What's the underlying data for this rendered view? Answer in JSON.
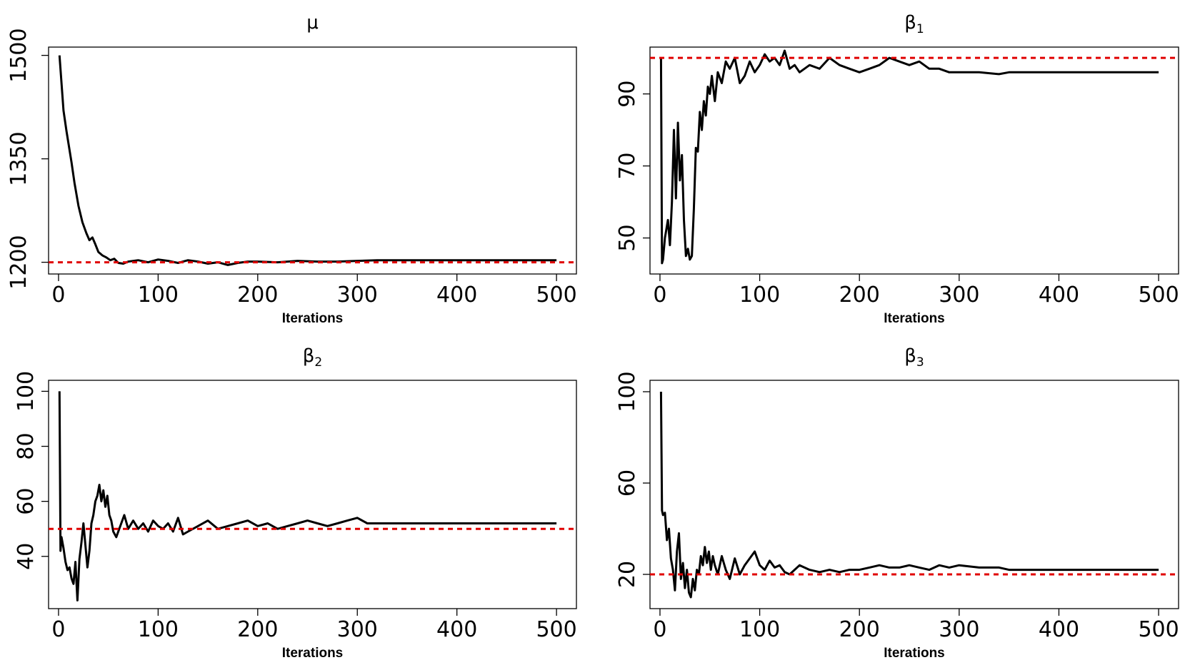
{
  "colors": {
    "trace": "#000000",
    "reference": "#e00000",
    "frame": "#000000"
  },
  "chart_data": [
    {
      "type": "line",
      "title_main": "μ",
      "title_sub": "",
      "xlabel": "Iterations",
      "ylabel": "",
      "xlim": [
        -10,
        520
      ],
      "ylim": [
        1183,
        1512
      ],
      "xticks": [
        "0",
        "100",
        "200",
        "300",
        "400",
        "500"
      ],
      "yticks": [
        "1200",
        "1350",
        "1500"
      ],
      "reference_line": 1200,
      "grid": false,
      "series": [
        {
          "x": [
            1,
            3,
            5,
            8,
            10,
            13,
            16,
            20,
            24,
            28,
            31,
            34,
            37,
            40,
            44,
            48,
            52,
            56,
            60,
            65,
            70,
            80,
            90,
            100,
            110,
            120,
            130,
            140,
            150,
            160,
            170,
            180,
            190,
            200,
            220,
            240,
            260,
            280,
            300,
            320,
            340,
            360,
            400,
            450,
            500
          ],
          "values": [
            1500,
            1460,
            1420,
            1390,
            1372,
            1345,
            1315,
            1282,
            1258,
            1242,
            1232,
            1236,
            1226,
            1215,
            1210,
            1207,
            1203,
            1205,
            1199,
            1198,
            1201,
            1203,
            1200,
            1204,
            1202,
            1199,
            1203,
            1201,
            1198,
            1200,
            1196,
            1199,
            1201,
            1201,
            1200,
            1202,
            1201,
            1201,
            1202,
            1203,
            1203,
            1203,
            1203,
            1203,
            1203
          ]
        }
      ]
    },
    {
      "type": "line",
      "title_main": "β",
      "title_sub": "1",
      "xlabel": "Iterations",
      "ylabel": "",
      "xlim": [
        -10,
        520
      ],
      "ylim": [
        40,
        103
      ],
      "xticks": [
        "0",
        "100",
        "200",
        "300",
        "400",
        "500"
      ],
      "yticks": [
        "50",
        "70",
        "90"
      ],
      "reference_line": 100,
      "grid": false,
      "series": [
        {
          "x": [
            1,
            2,
            3,
            5,
            8,
            10,
            12,
            14,
            16,
            18,
            20,
            22,
            24,
            26,
            28,
            30,
            32,
            34,
            36,
            38,
            40,
            42,
            44,
            46,
            48,
            50,
            52,
            55,
            58,
            62,
            66,
            70,
            75,
            80,
            85,
            90,
            95,
            100,
            105,
            110,
            115,
            120,
            125,
            130,
            135,
            140,
            150,
            160,
            170,
            180,
            190,
            200,
            210,
            220,
            230,
            240,
            250,
            260,
            270,
            280,
            290,
            300,
            320,
            340,
            350,
            400,
            450,
            500
          ],
          "values": [
            100,
            43,
            44,
            50,
            55,
            48,
            60,
            80,
            61,
            82,
            66,
            73,
            55,
            45,
            47,
            44,
            45,
            58,
            75,
            74,
            85,
            80,
            88,
            84,
            92,
            90,
            95,
            88,
            96,
            93,
            99,
            97,
            100,
            93,
            95,
            99,
            96,
            98,
            101,
            99,
            100,
            98,
            102,
            97,
            98,
            96,
            98,
            97,
            100,
            98,
            97,
            96,
            97,
            98,
            100,
            99,
            98,
            99,
            97,
            97,
            96,
            96,
            96,
            95.5,
            96,
            96,
            96,
            96
          ]
        }
      ]
    },
    {
      "type": "line",
      "title_main": "β",
      "title_sub": "2",
      "xlabel": "Iterations",
      "ylabel": "",
      "xlim": [
        -10,
        520
      ],
      "ylim": [
        21,
        104
      ],
      "xticks": [
        "0",
        "100",
        "200",
        "300",
        "400",
        "500"
      ],
      "yticks": [
        "40",
        "60",
        "80",
        "100"
      ],
      "reference_line": 50,
      "grid": false,
      "series": [
        {
          "x": [
            1,
            2,
            3,
            5,
            7,
            9,
            11,
            13,
            15,
            17,
            19,
            21,
            23,
            25,
            27,
            29,
            31,
            33,
            35,
            37,
            39,
            41,
            43,
            45,
            47,
            49,
            51,
            53,
            55,
            58,
            62,
            66,
            70,
            75,
            80,
            85,
            90,
            95,
            100,
            105,
            110,
            115,
            120,
            125,
            130,
            140,
            150,
            160,
            170,
            180,
            190,
            200,
            210,
            220,
            230,
            240,
            250,
            260,
            270,
            280,
            290,
            300,
            310,
            320,
            340,
            350,
            400,
            450,
            500
          ],
          "values": [
            100,
            42,
            47,
            43,
            38,
            35,
            36,
            32,
            30,
            38,
            24,
            39,
            45,
            52,
            44,
            36,
            42,
            52,
            55,
            60,
            62,
            66,
            60,
            64,
            58,
            62,
            55,
            53,
            49,
            47,
            51,
            55,
            50,
            53,
            50,
            52,
            49,
            53,
            51,
            50,
            52,
            49,
            54,
            48,
            49,
            51,
            53,
            50,
            51,
            52,
            53,
            51,
            52,
            50,
            51,
            52,
            53,
            52,
            51,
            52,
            53,
            54,
            52,
            52,
            52,
            52,
            52,
            52,
            52
          ]
        }
      ]
    },
    {
      "type": "line",
      "title_main": "β",
      "title_sub": "3",
      "xlabel": "Iterations",
      "ylabel": "",
      "xlim": [
        -10,
        520
      ],
      "ylim": [
        5,
        105
      ],
      "xticks": [
        "0",
        "100",
        "200",
        "300",
        "400",
        "500"
      ],
      "yticks": [
        "20",
        "60",
        "100"
      ],
      "reference_line": 20,
      "grid": false,
      "series": [
        {
          "x": [
            1,
            2,
            3,
            5,
            7,
            9,
            11,
            13,
            15,
            17,
            19,
            21,
            23,
            25,
            27,
            29,
            31,
            33,
            35,
            37,
            39,
            41,
            43,
            45,
            47,
            49,
            51,
            53,
            55,
            58,
            62,
            66,
            70,
            75,
            80,
            85,
            90,
            95,
            100,
            105,
            110,
            115,
            120,
            125,
            130,
            140,
            150,
            160,
            170,
            180,
            190,
            200,
            210,
            220,
            230,
            240,
            250,
            260,
            270,
            280,
            290,
            300,
            320,
            340,
            350,
            400,
            450,
            500
          ],
          "values": [
            100,
            48,
            46,
            47,
            35,
            40,
            27,
            22,
            13,
            30,
            38,
            18,
            25,
            14,
            22,
            12,
            10,
            18,
            13,
            22,
            20,
            28,
            24,
            32,
            25,
            30,
            22,
            28,
            24,
            20,
            28,
            22,
            18,
            27,
            20,
            24,
            27,
            30,
            24,
            22,
            26,
            23,
            24,
            21,
            20,
            24,
            22,
            21,
            22,
            21,
            22,
            22,
            23,
            24,
            23,
            23,
            24,
            23,
            22,
            24,
            23,
            24,
            23,
            23,
            22,
            22,
            22,
            22
          ]
        }
      ]
    }
  ]
}
